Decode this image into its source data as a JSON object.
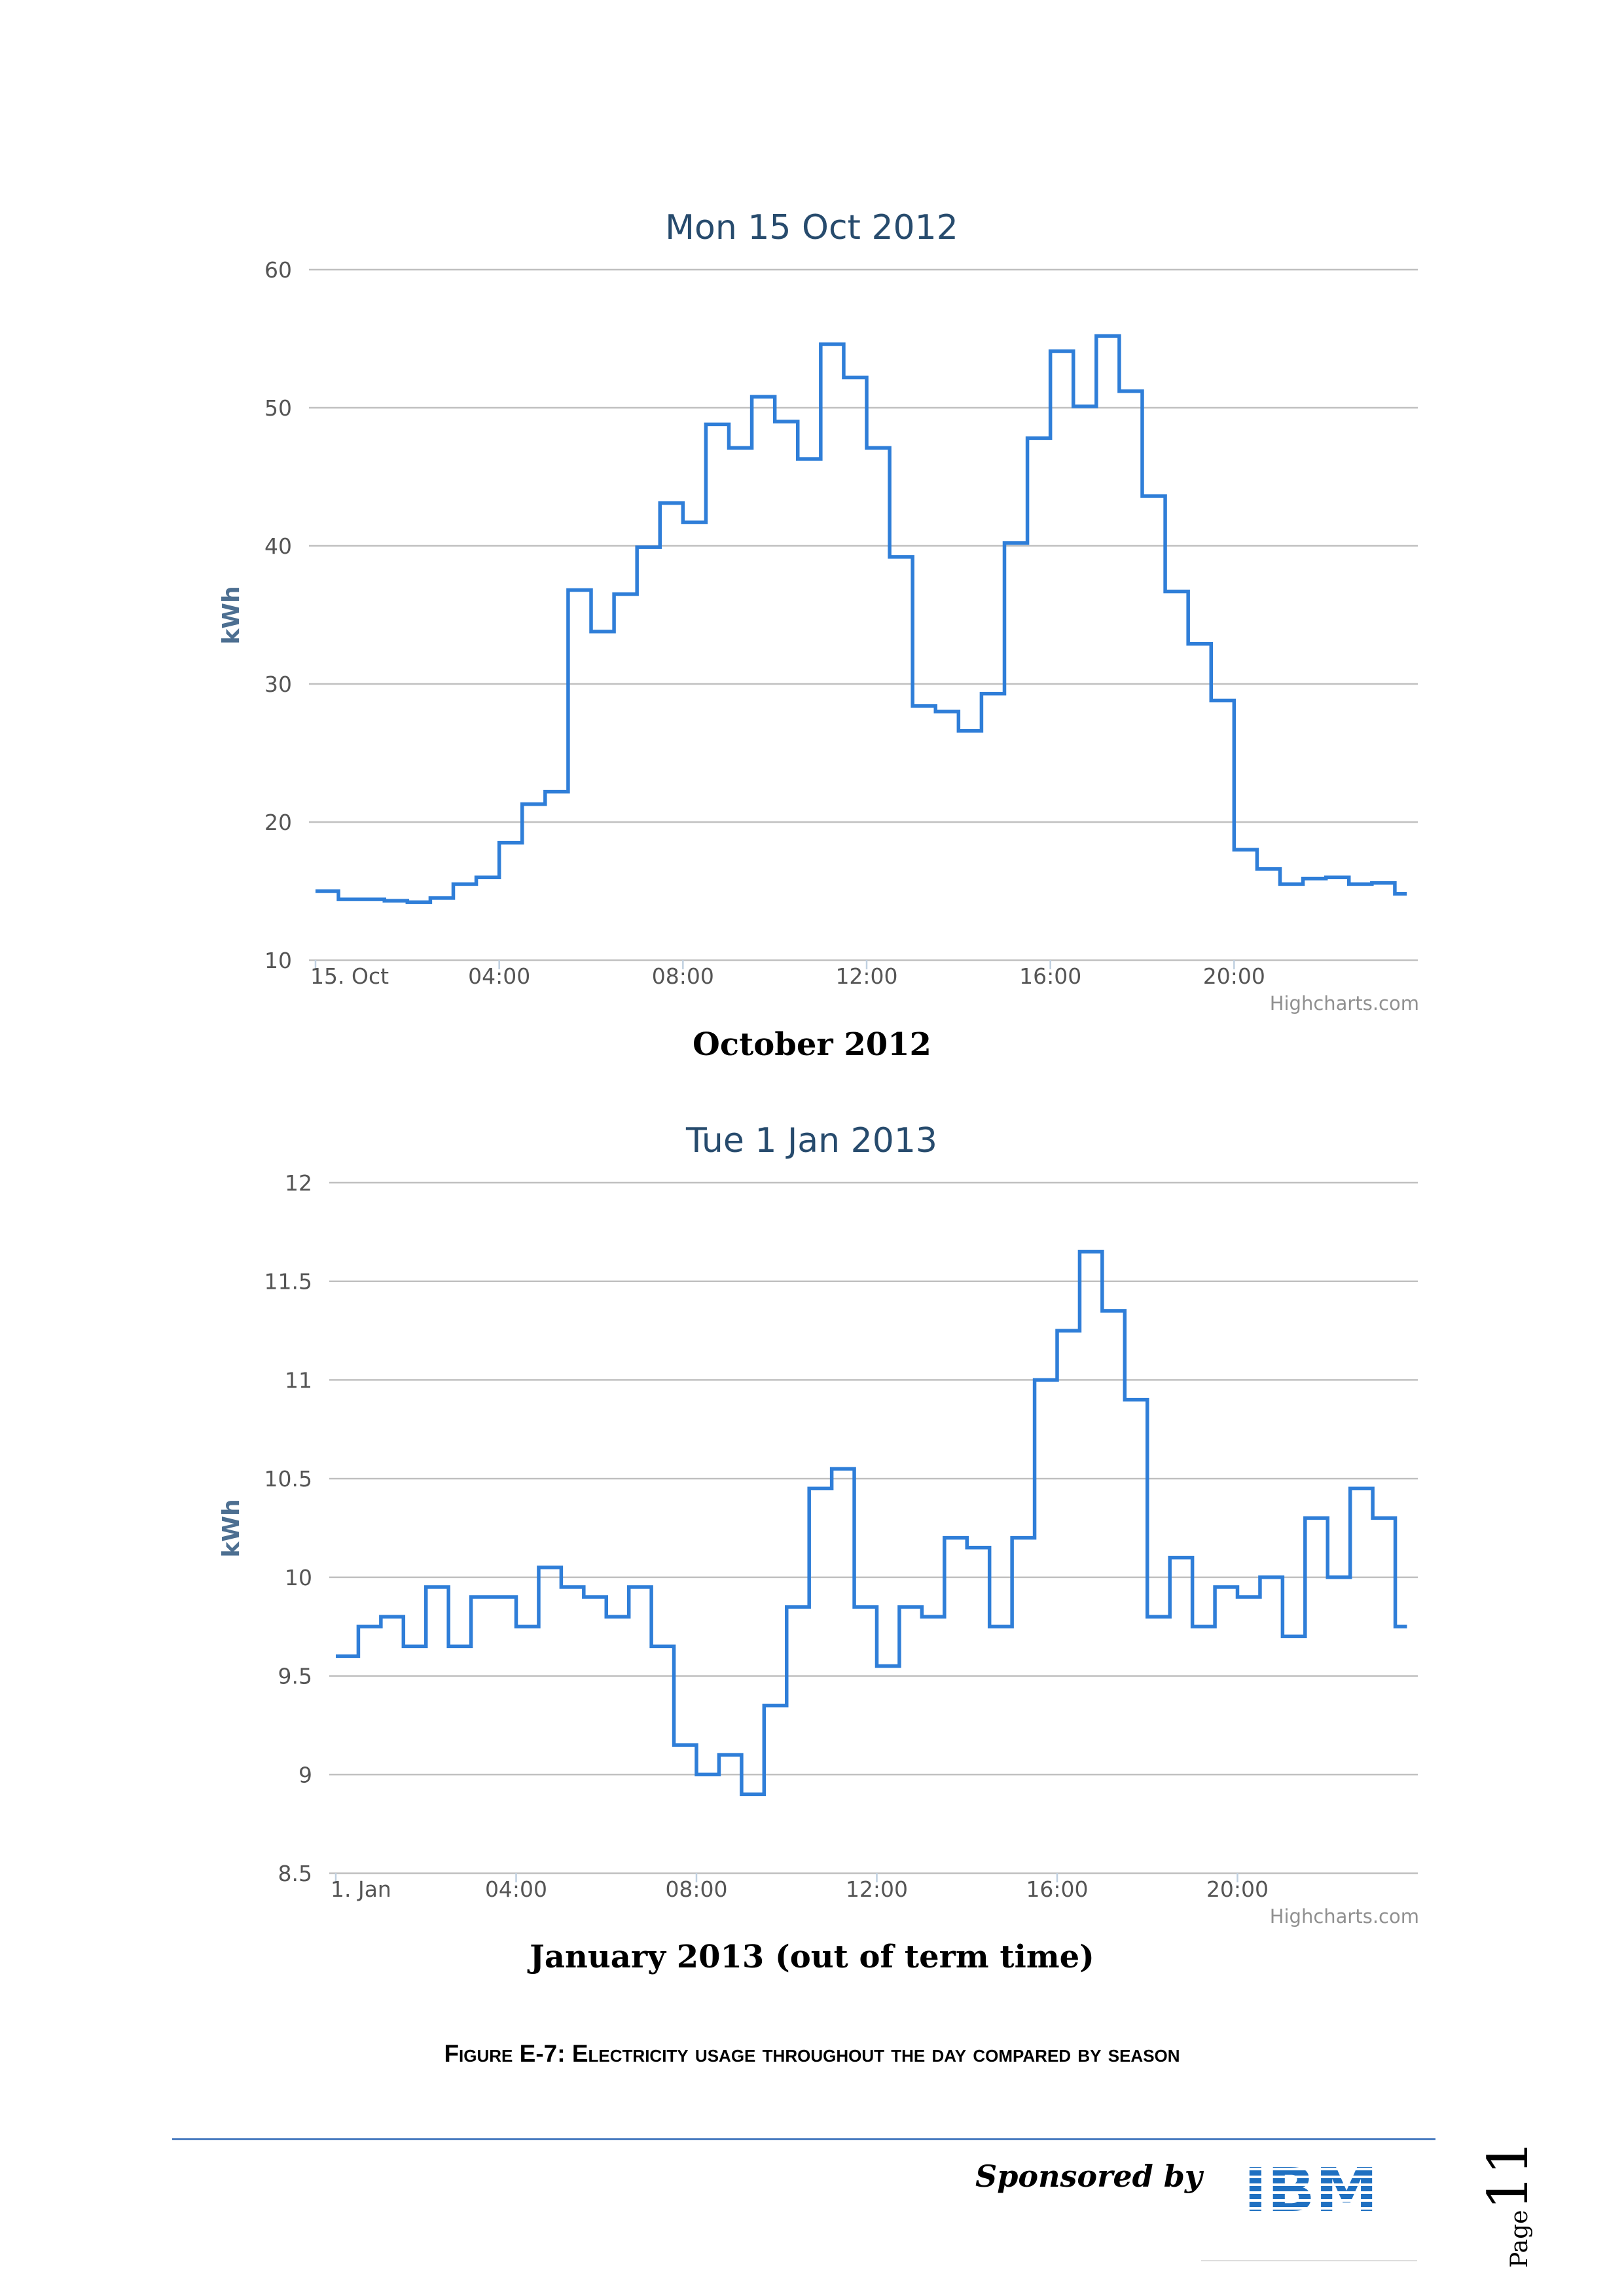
{
  "chart_data": [
    {
      "type": "line",
      "step": true,
      "title": "Mon 15 Oct 2012",
      "xlabel": "",
      "ylabel": "kWh",
      "ylim": [
        10,
        60
      ],
      "y_ticks": [
        "10",
        "20",
        "30",
        "40",
        "50",
        "60"
      ],
      "x_ticks": [
        "15. Oct",
        "04:00",
        "08:00",
        "12:00",
        "16:00",
        "20:00"
      ],
      "x_range_hours": [
        0,
        24
      ],
      "grid": true,
      "credit": "Highcharts.com",
      "series": [
        {
          "color": "#2f7ed8",
          "x_hours": [
            0,
            0.5,
            1,
            1.5,
            2,
            2.5,
            3,
            3.5,
            4,
            4.5,
            5,
            5.5,
            6,
            6.5,
            7,
            7.5,
            8,
            8.5,
            9,
            9.5,
            10,
            10.5,
            11,
            11.5,
            12,
            12.5,
            13,
            13.5,
            14,
            14.5,
            15,
            15.5,
            16,
            16.5,
            17,
            17.5,
            18,
            18.5,
            19,
            19.5,
            20,
            20.5,
            21,
            21.5,
            22,
            22.5,
            23,
            23.5
          ],
          "values": [
            15,
            14.4,
            14.4,
            14.3,
            14.2,
            14.5,
            15.5,
            16,
            18.5,
            21.3,
            22.2,
            36.8,
            33.8,
            36.5,
            39.9,
            43.1,
            41.7,
            48.8,
            47.1,
            50.8,
            49,
            46.3,
            54.6,
            52.2,
            47.1,
            39.2,
            28.4,
            28,
            26.6,
            29.3,
            40.2,
            47.8,
            54.1,
            50.1,
            55.2,
            51.2,
            43.6,
            36.7,
            32.9,
            28.8,
            18,
            16.6,
            15.5,
            15.9,
            16,
            15.5,
            15.6,
            14.8
          ]
        }
      ],
      "caption": "October 2012"
    },
    {
      "type": "line",
      "step": true,
      "title": "Tue 1 Jan 2013",
      "xlabel": "",
      "ylabel": "kWh",
      "ylim": [
        8.5,
        12
      ],
      "y_ticks": [
        "8.5",
        "9",
        "9.5",
        "10",
        "10.5",
        "11",
        "11.5",
        "12"
      ],
      "x_ticks": [
        "1. Jan",
        "04:00",
        "08:00",
        "12:00",
        "16:00",
        "20:00"
      ],
      "x_range_hours": [
        0,
        24
      ],
      "grid": true,
      "credit": "Highcharts.com",
      "series": [
        {
          "color": "#2f7ed8",
          "x_hours": [
            0,
            0.5,
            1,
            1.5,
            2,
            2.5,
            3,
            3.5,
            4,
            4.5,
            5,
            5.5,
            6,
            6.5,
            7,
            7.5,
            8,
            8.5,
            9,
            9.5,
            10,
            10.5,
            11,
            11.5,
            12,
            12.5,
            13,
            13.5,
            14,
            14.5,
            15,
            15.5,
            16,
            16.5,
            17,
            17.5,
            18,
            18.5,
            19,
            19.5,
            20,
            20.5,
            21,
            21.5,
            22,
            22.5,
            23,
            23.5
          ],
          "values": [
            9.6,
            9.75,
            9.8,
            9.65,
            9.95,
            9.65,
            9.9,
            9.9,
            9.75,
            10.05,
            9.95,
            9.9,
            9.8,
            9.95,
            9.65,
            9.15,
            9.0,
            9.1,
            8.9,
            9.35,
            9.85,
            10.45,
            10.55,
            9.85,
            9.55,
            9.85,
            9.8,
            10.2,
            10.15,
            9.75,
            10.2,
            11.0,
            11.25,
            11.65,
            11.35,
            10.9,
            9.8,
            10.1,
            9.75,
            9.95,
            9.9,
            10.0,
            9.7,
            10.3,
            10.0,
            10.45,
            10.3,
            9.75
          ]
        }
      ],
      "caption": "January 2013 (out of term time)"
    }
  ],
  "figure_caption": "Figure E-7: Electricity usage throughout the day compared by season",
  "footer": {
    "sponsored_by": "Sponsored by",
    "logo": "IBM",
    "page_word": "Page",
    "page_number": "11"
  },
  "colors": {
    "series": "#2f7ed8",
    "title": "#274b6d",
    "footer_rule": "#4a7cc0",
    "logo": "#1f70c1"
  }
}
